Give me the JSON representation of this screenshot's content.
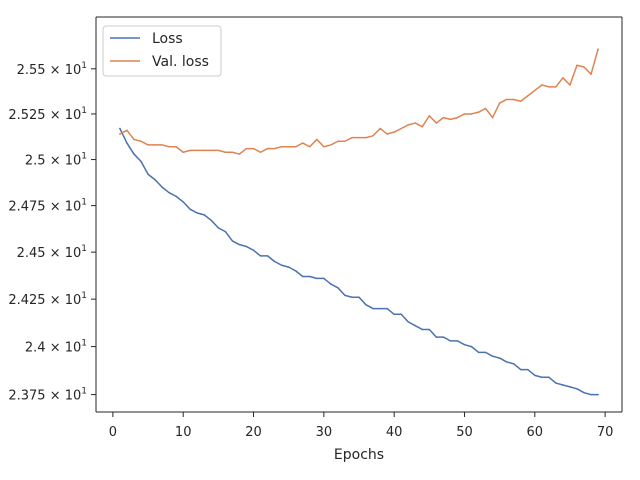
{
  "chart_data": {
    "type": "line",
    "title": "",
    "xlabel": "Epochs",
    "ylabel": "",
    "xlim": [
      -2.4,
      72.4
    ],
    "ylim": [
      23.66,
      25.79
    ],
    "x_ticks": [
      0,
      10,
      20,
      30,
      40,
      50,
      60,
      70
    ],
    "y_ticks": [
      {
        "value": 23.75,
        "mantissa": "2.375",
        "exponent": "1"
      },
      {
        "value": 24.0,
        "mantissa": "2.4",
        "exponent": "1"
      },
      {
        "value": 24.25,
        "mantissa": "2.425",
        "exponent": "1"
      },
      {
        "value": 24.5,
        "mantissa": "2.45",
        "exponent": "1"
      },
      {
        "value": 24.75,
        "mantissa": "2.475",
        "exponent": "1"
      },
      {
        "value": 25.0,
        "mantissa": "2.5",
        "exponent": "1"
      },
      {
        "value": 25.25,
        "mantissa": "2.525",
        "exponent": "1"
      },
      {
        "value": 25.5,
        "mantissa": "2.55",
        "exponent": "1"
      }
    ],
    "y_scale": "log",
    "grid": false,
    "legend_position": "top-left",
    "x": [
      1,
      2,
      3,
      4,
      5,
      6,
      7,
      8,
      9,
      10,
      11,
      12,
      13,
      14,
      15,
      16,
      17,
      18,
      19,
      20,
      21,
      22,
      23,
      24,
      25,
      26,
      27,
      28,
      29,
      30,
      31,
      32,
      33,
      34,
      35,
      36,
      37,
      38,
      39,
      40,
      41,
      42,
      43,
      44,
      45,
      46,
      47,
      48,
      49,
      50,
      51,
      52,
      53,
      54,
      55,
      56,
      57,
      58,
      59,
      60,
      61,
      62,
      63,
      64,
      65,
      66,
      67,
      68,
      69
    ],
    "series": [
      {
        "name": "Loss",
        "color": "#4c72b0",
        "values": [
          25.17,
          25.09,
          25.03,
          24.99,
          24.92,
          24.89,
          24.85,
          24.82,
          24.8,
          24.77,
          24.73,
          24.71,
          24.7,
          24.67,
          24.63,
          24.61,
          24.56,
          24.54,
          24.53,
          24.51,
          24.48,
          24.48,
          24.45,
          24.43,
          24.42,
          24.4,
          24.37,
          24.37,
          24.36,
          24.36,
          24.33,
          24.31,
          24.27,
          24.26,
          24.26,
          24.22,
          24.2,
          24.2,
          24.2,
          24.17,
          24.17,
          24.13,
          24.11,
          24.09,
          24.09,
          24.05,
          24.05,
          24.03,
          24.03,
          24.01,
          24.0,
          23.97,
          23.97,
          23.95,
          23.94,
          23.92,
          23.91,
          23.88,
          23.88,
          23.85,
          23.84,
          23.84,
          23.81,
          23.8,
          23.79,
          23.78,
          23.76,
          23.75,
          23.75
        ]
      },
      {
        "name": "Val. loss",
        "color": "#dd8452",
        "values": [
          25.14,
          25.16,
          25.11,
          25.1,
          25.08,
          25.08,
          25.08,
          25.07,
          25.07,
          25.04,
          25.05,
          25.05,
          25.05,
          25.05,
          25.05,
          25.04,
          25.04,
          25.03,
          25.06,
          25.06,
          25.04,
          25.06,
          25.06,
          25.07,
          25.07,
          25.07,
          25.09,
          25.07,
          25.11,
          25.07,
          25.08,
          25.1,
          25.1,
          25.12,
          25.12,
          25.12,
          25.13,
          25.17,
          25.14,
          25.15,
          25.17,
          25.19,
          25.2,
          25.18,
          25.24,
          25.2,
          25.23,
          25.22,
          25.23,
          25.25,
          25.25,
          25.26,
          25.28,
          25.23,
          25.31,
          25.33,
          25.33,
          25.32,
          25.35,
          25.38,
          25.41,
          25.4,
          25.4,
          25.45,
          25.41,
          25.52,
          25.51,
          25.47,
          25.61
        ]
      }
    ]
  }
}
